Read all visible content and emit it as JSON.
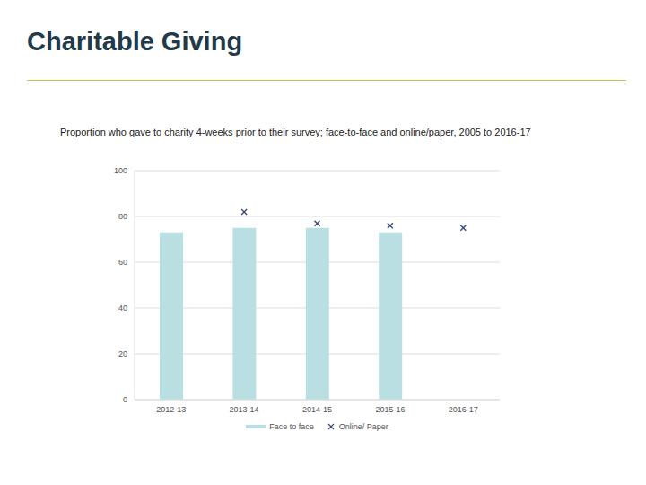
{
  "chart_data": {
    "type": "bar",
    "title": "Charitable Giving",
    "subtitle": "Proportion who gave to charity 4-weeks prior to their survey; face-to-face and online/paper, 2005 to 2016-17",
    "categories": [
      "2012-13",
      "2013-14",
      "2014-15",
      "2015-16",
      "2016-17"
    ],
    "series": [
      {
        "name": "Face to face",
        "type": "bar",
        "color": "#b9dfe3",
        "values": [
          73,
          75,
          75,
          73,
          null
        ]
      },
      {
        "name": "Online/ Paper",
        "type": "scatter",
        "marker": "x",
        "color": "#3b4a7a",
        "values": [
          null,
          82,
          77,
          76,
          75
        ]
      }
    ],
    "ylim": [
      0,
      100
    ],
    "yticks": [
      0,
      20,
      40,
      60,
      80,
      100
    ],
    "grid": true,
    "legend": "bottom"
  }
}
